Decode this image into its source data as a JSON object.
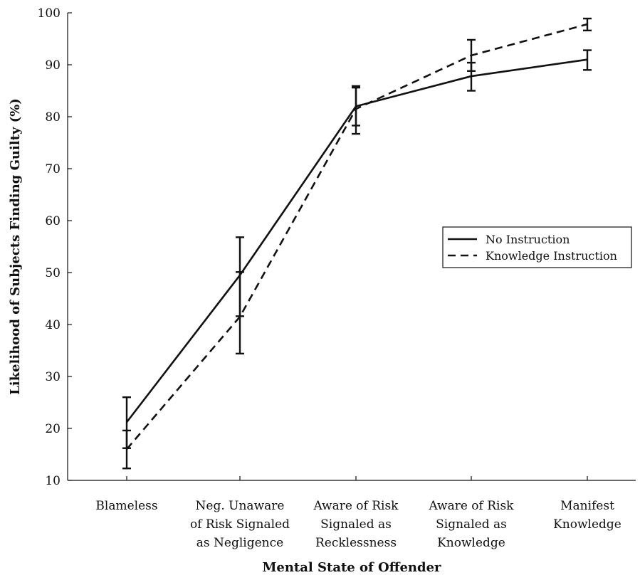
{
  "chart_data": {
    "type": "line",
    "title": "",
    "xlabel": "Mental State of Offender",
    "ylabel": "Likelihood  of Subjects Finding Guilty (%)",
    "ylim": [
      10,
      100
    ],
    "yticks": [
      10,
      20,
      30,
      40,
      50,
      60,
      70,
      80,
      90,
      100
    ],
    "categories": [
      [
        "Blameless"
      ],
      [
        "Neg. Unaware",
        "of Risk Signaled",
        "as Negligence"
      ],
      [
        "Aware of Risk",
        "Signaled as",
        "Recklessness"
      ],
      [
        "Aware of Risk",
        "Signaled as",
        "Knowledge"
      ],
      [
        "Manifest",
        "Knowledge"
      ]
    ],
    "series": [
      {
        "name": "No Instruction",
        "style": "solid",
        "color": "#111111",
        "values": [
          21.2,
          49.5,
          82.0,
          87.8,
          91.0
        ],
        "error_low": [
          16.2,
          41.6,
          78.3,
          85.0,
          89.0
        ],
        "error_high": [
          26.0,
          56.8,
          85.6,
          90.4,
          92.8
        ]
      },
      {
        "name": "Knowledge Instruction",
        "style": "dashed",
        "color": "#111111",
        "values": [
          16.0,
          41.5,
          81.5,
          91.8,
          97.8
        ],
        "error_low": [
          12.3,
          34.4,
          76.7,
          88.8,
          96.6
        ],
        "error_high": [
          19.6,
          50.1,
          85.9,
          94.8,
          98.9
        ]
      }
    ],
    "legend": {
      "position": "right-middle",
      "entries": [
        "No Instruction",
        "Knowledge Instruction"
      ]
    },
    "grid": false
  }
}
